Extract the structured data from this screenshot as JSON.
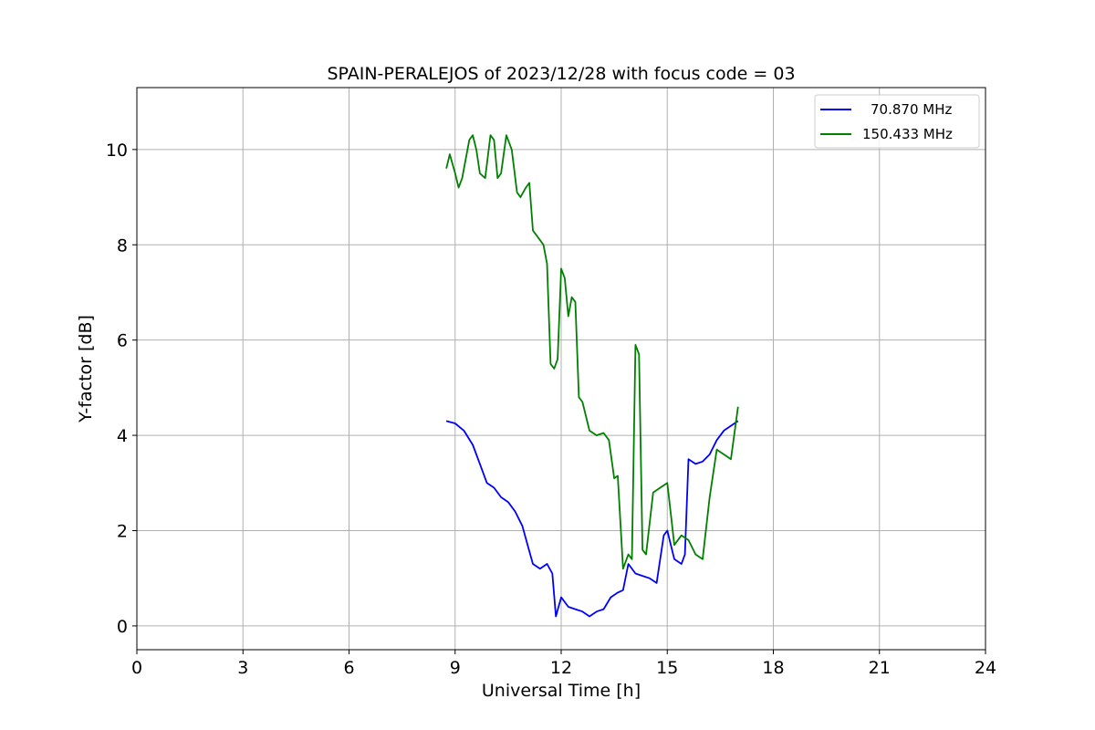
{
  "chart_data": {
    "type": "line",
    "title": "SPAIN-PERALEJOS of 2023/12/28 with focus code = 03",
    "xlabel": "Universal Time [h]",
    "ylabel": "Y-factor [dB]",
    "xlim": [
      0,
      24
    ],
    "ylim": [
      -0.5,
      11.3
    ],
    "xticks": [
      0,
      3,
      6,
      9,
      12,
      15,
      18,
      21,
      24
    ],
    "yticks": [
      0,
      2,
      4,
      6,
      8,
      10
    ],
    "grid": true,
    "legend_position": "top-right",
    "series": [
      {
        "name": "70.870 MHz",
        "color": "#0000ff",
        "x": [
          8.75,
          9.0,
          9.25,
          9.5,
          9.7,
          9.9,
          10.1,
          10.3,
          10.5,
          10.7,
          10.9,
          11.05,
          11.2,
          11.4,
          11.6,
          11.75,
          11.85,
          12.0,
          12.2,
          12.4,
          12.6,
          12.8,
          13.0,
          13.2,
          13.4,
          13.6,
          13.75,
          13.9,
          14.1,
          14.3,
          14.5,
          14.7,
          14.8,
          14.9,
          15.0,
          15.2,
          15.4,
          15.5,
          15.6,
          15.8,
          16.0,
          16.2,
          16.4,
          16.6,
          16.8,
          17.0
        ],
        "y": [
          4.3,
          4.25,
          4.1,
          3.8,
          3.4,
          3.0,
          2.9,
          2.7,
          2.6,
          2.4,
          2.1,
          1.7,
          1.3,
          1.2,
          1.3,
          1.1,
          0.2,
          0.6,
          0.4,
          0.35,
          0.3,
          0.2,
          0.3,
          0.35,
          0.6,
          0.7,
          0.75,
          1.3,
          1.1,
          1.05,
          1.0,
          0.9,
          1.4,
          1.9,
          2.0,
          1.4,
          1.3,
          1.5,
          3.5,
          3.4,
          3.45,
          3.6,
          3.9,
          4.1,
          4.2,
          4.3
        ]
      },
      {
        "name": "150.433 MHz",
        "color": "#008000",
        "x": [
          8.75,
          8.85,
          9.0,
          9.1,
          9.2,
          9.3,
          9.4,
          9.5,
          9.6,
          9.7,
          9.85,
          10.0,
          10.1,
          10.2,
          10.3,
          10.45,
          10.6,
          10.75,
          10.85,
          11.0,
          11.1,
          11.2,
          11.3,
          11.5,
          11.6,
          11.7,
          11.8,
          11.9,
          12.0,
          12.1,
          12.2,
          12.3,
          12.4,
          12.5,
          12.6,
          12.8,
          13.0,
          13.2,
          13.35,
          13.5,
          13.6,
          13.75,
          13.9,
          14.0,
          14.1,
          14.2,
          14.3,
          14.4,
          14.6,
          14.8,
          15.0,
          15.2,
          15.4,
          15.6,
          15.8,
          16.0,
          16.2,
          16.4,
          16.6,
          16.8,
          17.0
        ],
        "y": [
          9.6,
          9.9,
          9.5,
          9.2,
          9.4,
          9.8,
          10.2,
          10.3,
          10.0,
          9.5,
          9.4,
          10.3,
          10.2,
          9.4,
          9.5,
          10.3,
          10.0,
          9.1,
          9.0,
          9.2,
          9.3,
          8.3,
          8.2,
          8.0,
          7.6,
          5.5,
          5.4,
          5.6,
          7.5,
          7.3,
          6.5,
          6.9,
          6.8,
          4.8,
          4.7,
          4.1,
          4.0,
          4.05,
          3.9,
          3.1,
          3.15,
          1.2,
          1.5,
          1.4,
          5.9,
          5.7,
          1.6,
          1.5,
          2.8,
          2.9,
          3.0,
          1.7,
          1.9,
          1.8,
          1.5,
          1.4,
          2.7,
          3.7,
          3.6,
          3.5,
          4.6
        ]
      }
    ]
  }
}
